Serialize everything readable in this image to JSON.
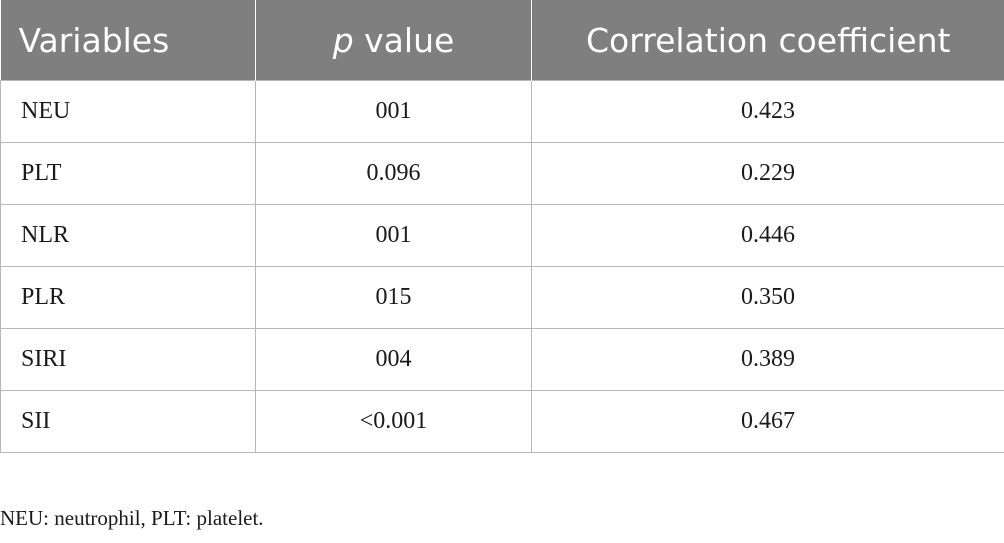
{
  "table": {
    "headers": {
      "variables": "Variables",
      "p_italic": "p",
      "p_rest": " value",
      "correlation": "Correlation coefficient"
    },
    "rows": [
      {
        "variable": "NEU",
        "p_value": "001",
        "coefficient": "0.423"
      },
      {
        "variable": "PLT",
        "p_value": "0.096",
        "coefficient": "0.229"
      },
      {
        "variable": "NLR",
        "p_value": "001",
        "coefficient": "0.446"
      },
      {
        "variable": "PLR",
        "p_value": "015",
        "coefficient": "0.350"
      },
      {
        "variable": "SIRI",
        "p_value": "004",
        "coefficient": "0.389"
      },
      {
        "variable": "SII",
        "p_value": "<0.001",
        "coefficient": "0.467"
      }
    ]
  },
  "footnote": "NEU: neutrophil, PLT: platelet.",
  "colors": {
    "header_bg": "#7f7f7f",
    "header_text": "#ffffff",
    "border": "#b7b7b7",
    "body_text": "#1a1a1a"
  }
}
